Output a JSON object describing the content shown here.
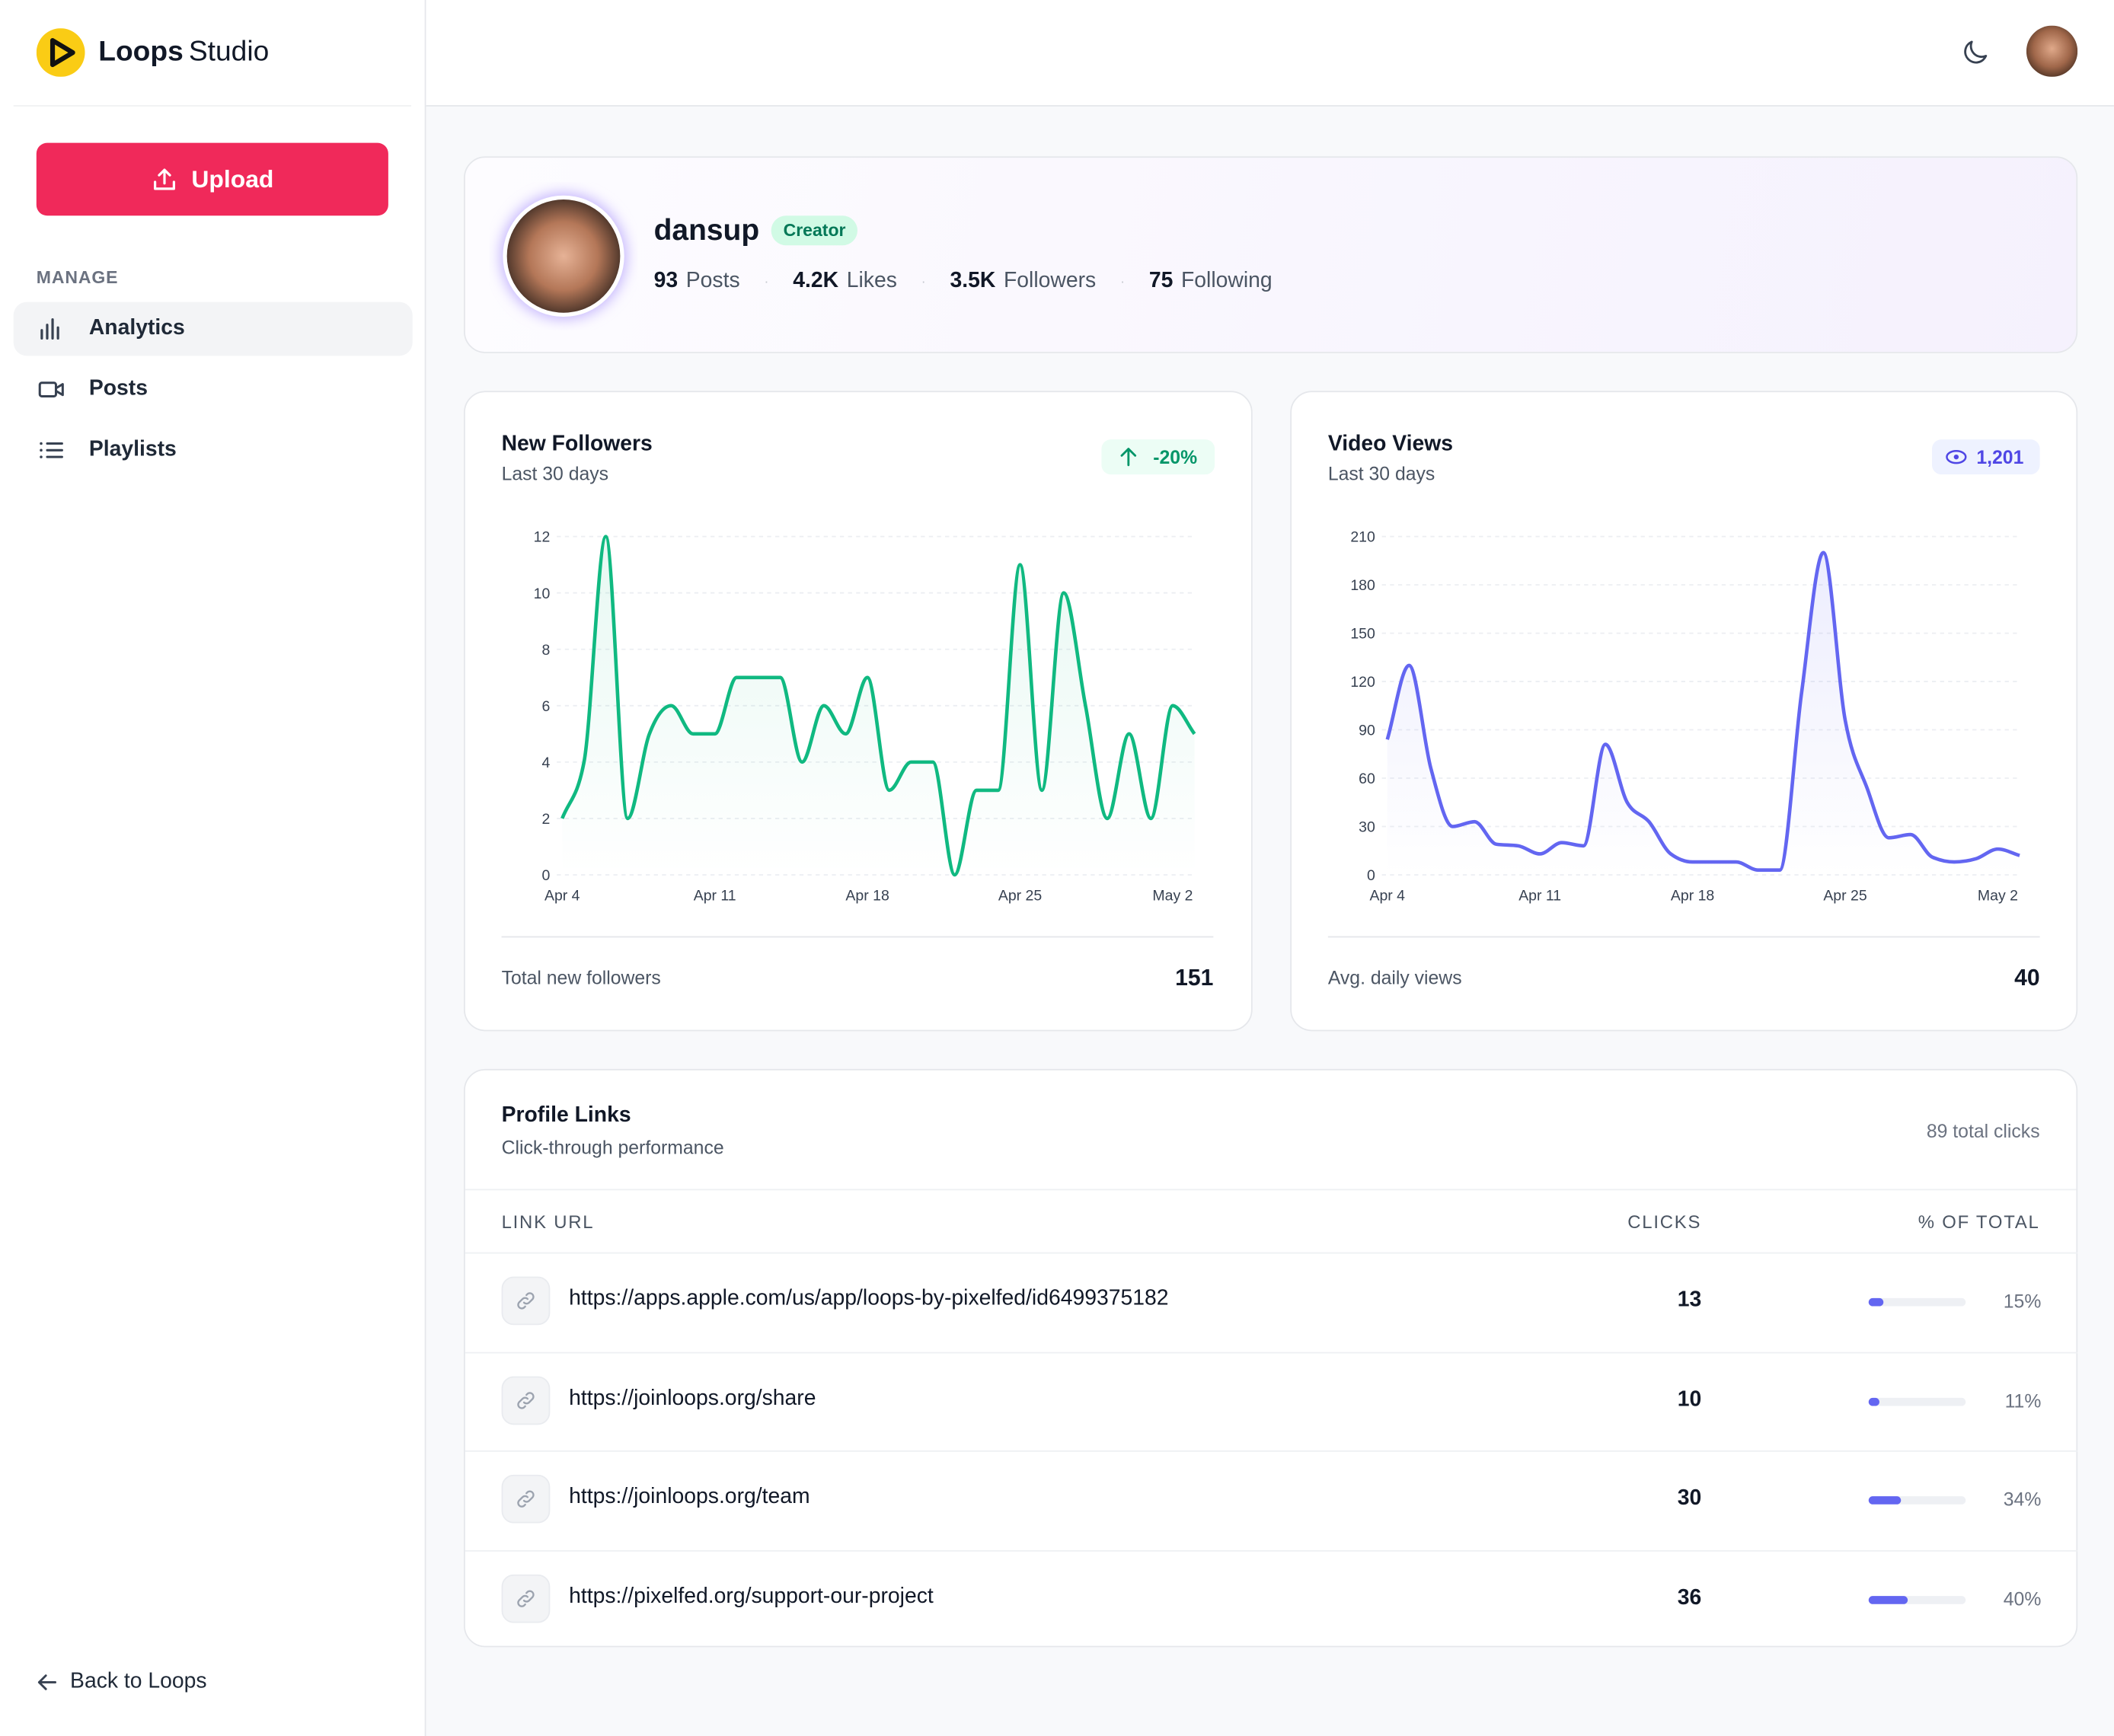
{
  "sidebar": {
    "brand": "Loops",
    "brand_suffix": "Studio",
    "upload": "Upload",
    "section": "MANAGE",
    "nav": [
      "Analytics",
      "Posts",
      "Playlists"
    ],
    "back": "Back to Loops"
  },
  "profile": {
    "name": "dansup",
    "badge": "Creator",
    "stats": [
      {
        "value": "93",
        "label": "Posts"
      },
      {
        "value": "4.2K",
        "label": "Likes"
      },
      {
        "value": "3.5K",
        "label": "Followers"
      },
      {
        "value": "75",
        "label": "Following"
      }
    ]
  },
  "chart_data": [
    {
      "type": "line",
      "title": "New Followers",
      "subtitle": "Last 30 days",
      "badge": "-20%",
      "color": "#10b981",
      "categories": [
        "Apr 4",
        null,
        null,
        null,
        null,
        null,
        null,
        "Apr 11",
        null,
        null,
        null,
        null,
        null,
        null,
        "Apr 18",
        null,
        null,
        null,
        null,
        null,
        null,
        "Apr 25",
        null,
        null,
        null,
        null,
        null,
        null,
        "May 2",
        null
      ],
      "values": [
        2,
        4,
        12,
        2,
        5,
        6,
        5,
        5,
        7,
        7,
        7,
        4,
        6,
        5,
        7,
        3,
        4,
        4,
        0,
        3,
        3,
        11,
        3,
        10,
        6,
        2,
        5,
        2,
        6,
        5
      ],
      "ylim": [
        0,
        12
      ],
      "yticks": [
        0,
        2,
        4,
        6,
        8,
        10,
        12
      ],
      "grid": true,
      "footer_label": "Total new followers",
      "footer_value": "151"
    },
    {
      "type": "line",
      "title": "Video Views",
      "subtitle": "Last 30 days",
      "badge": "1,201",
      "color": "#6366f1",
      "categories": [
        "Apr 4",
        null,
        null,
        null,
        null,
        null,
        null,
        "Apr 11",
        null,
        null,
        null,
        null,
        null,
        null,
        "Apr 18",
        null,
        null,
        null,
        null,
        null,
        null,
        "Apr 25",
        null,
        null,
        null,
        null,
        null,
        null,
        "May 2",
        null
      ],
      "values": [
        84,
        130,
        66,
        30,
        33,
        19,
        18,
        13,
        20,
        18,
        81,
        45,
        33,
        13,
        8,
        8,
        8,
        3,
        3,
        113,
        200,
        96,
        54,
        23,
        25,
        11,
        8,
        10,
        16,
        12
      ],
      "ylim": [
        0,
        210
      ],
      "yticks": [
        0,
        30,
        60,
        90,
        120,
        150,
        180,
        210
      ],
      "grid": true,
      "footer_label": "Avg. daily views",
      "footer_value": "40"
    }
  ],
  "links": {
    "title": "Profile Links",
    "subtitle": "Click-through performance",
    "total": "89 total clicks",
    "columns": [
      "LINK URL",
      "CLICKS",
      "% OF TOTAL"
    ],
    "rows": [
      {
        "url": "https://apps.apple.com/us/app/loops-by-pixelfed/id6499375182",
        "clicks": 13,
        "percent": {
          "value": 15,
          "label": "15%"
        }
      },
      {
        "url": "https://joinloops.org/share",
        "clicks": 10,
        "percent": {
          "value": 11,
          "label": "11%"
        }
      },
      {
        "url": "https://joinloops.org/team",
        "clicks": 30,
        "percent": {
          "value": 34,
          "label": "34%"
        }
      },
      {
        "url": "https://pixelfed.org/support-our-project",
        "clicks": 36,
        "percent": {
          "value": 40,
          "label": "40%"
        }
      }
    ]
  }
}
